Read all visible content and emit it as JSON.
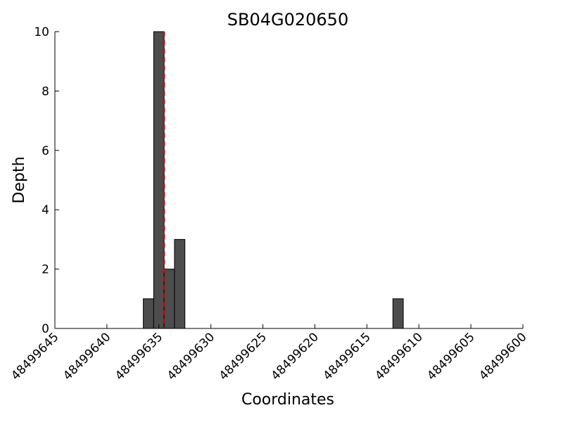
{
  "chart_data": {
    "type": "bar",
    "title": "SB04G020650",
    "xlabel": "Coordinates",
    "ylabel": "Depth",
    "xlim": [
      48499645,
      48499600
    ],
    "ylim": [
      0,
      10
    ],
    "x_reversed": true,
    "bar_width": 1,
    "x": [
      48499636,
      48499635,
      48499634,
      48499633,
      48499612
    ],
    "values": [
      1,
      10,
      2,
      3,
      1
    ],
    "xticks": [
      "48499645",
      "48499640",
      "48499635",
      "48499630",
      "48499625",
      "48499620",
      "48499615",
      "48499610",
      "48499605",
      "48499600"
    ],
    "yticks": [
      "0",
      "2",
      "4",
      "6",
      "8",
      "10"
    ],
    "marker_line": {
      "x": 48499634.5,
      "style": "dashed",
      "color": "#d40000"
    },
    "bar_color": "#4d4d4d",
    "grid": false
  }
}
